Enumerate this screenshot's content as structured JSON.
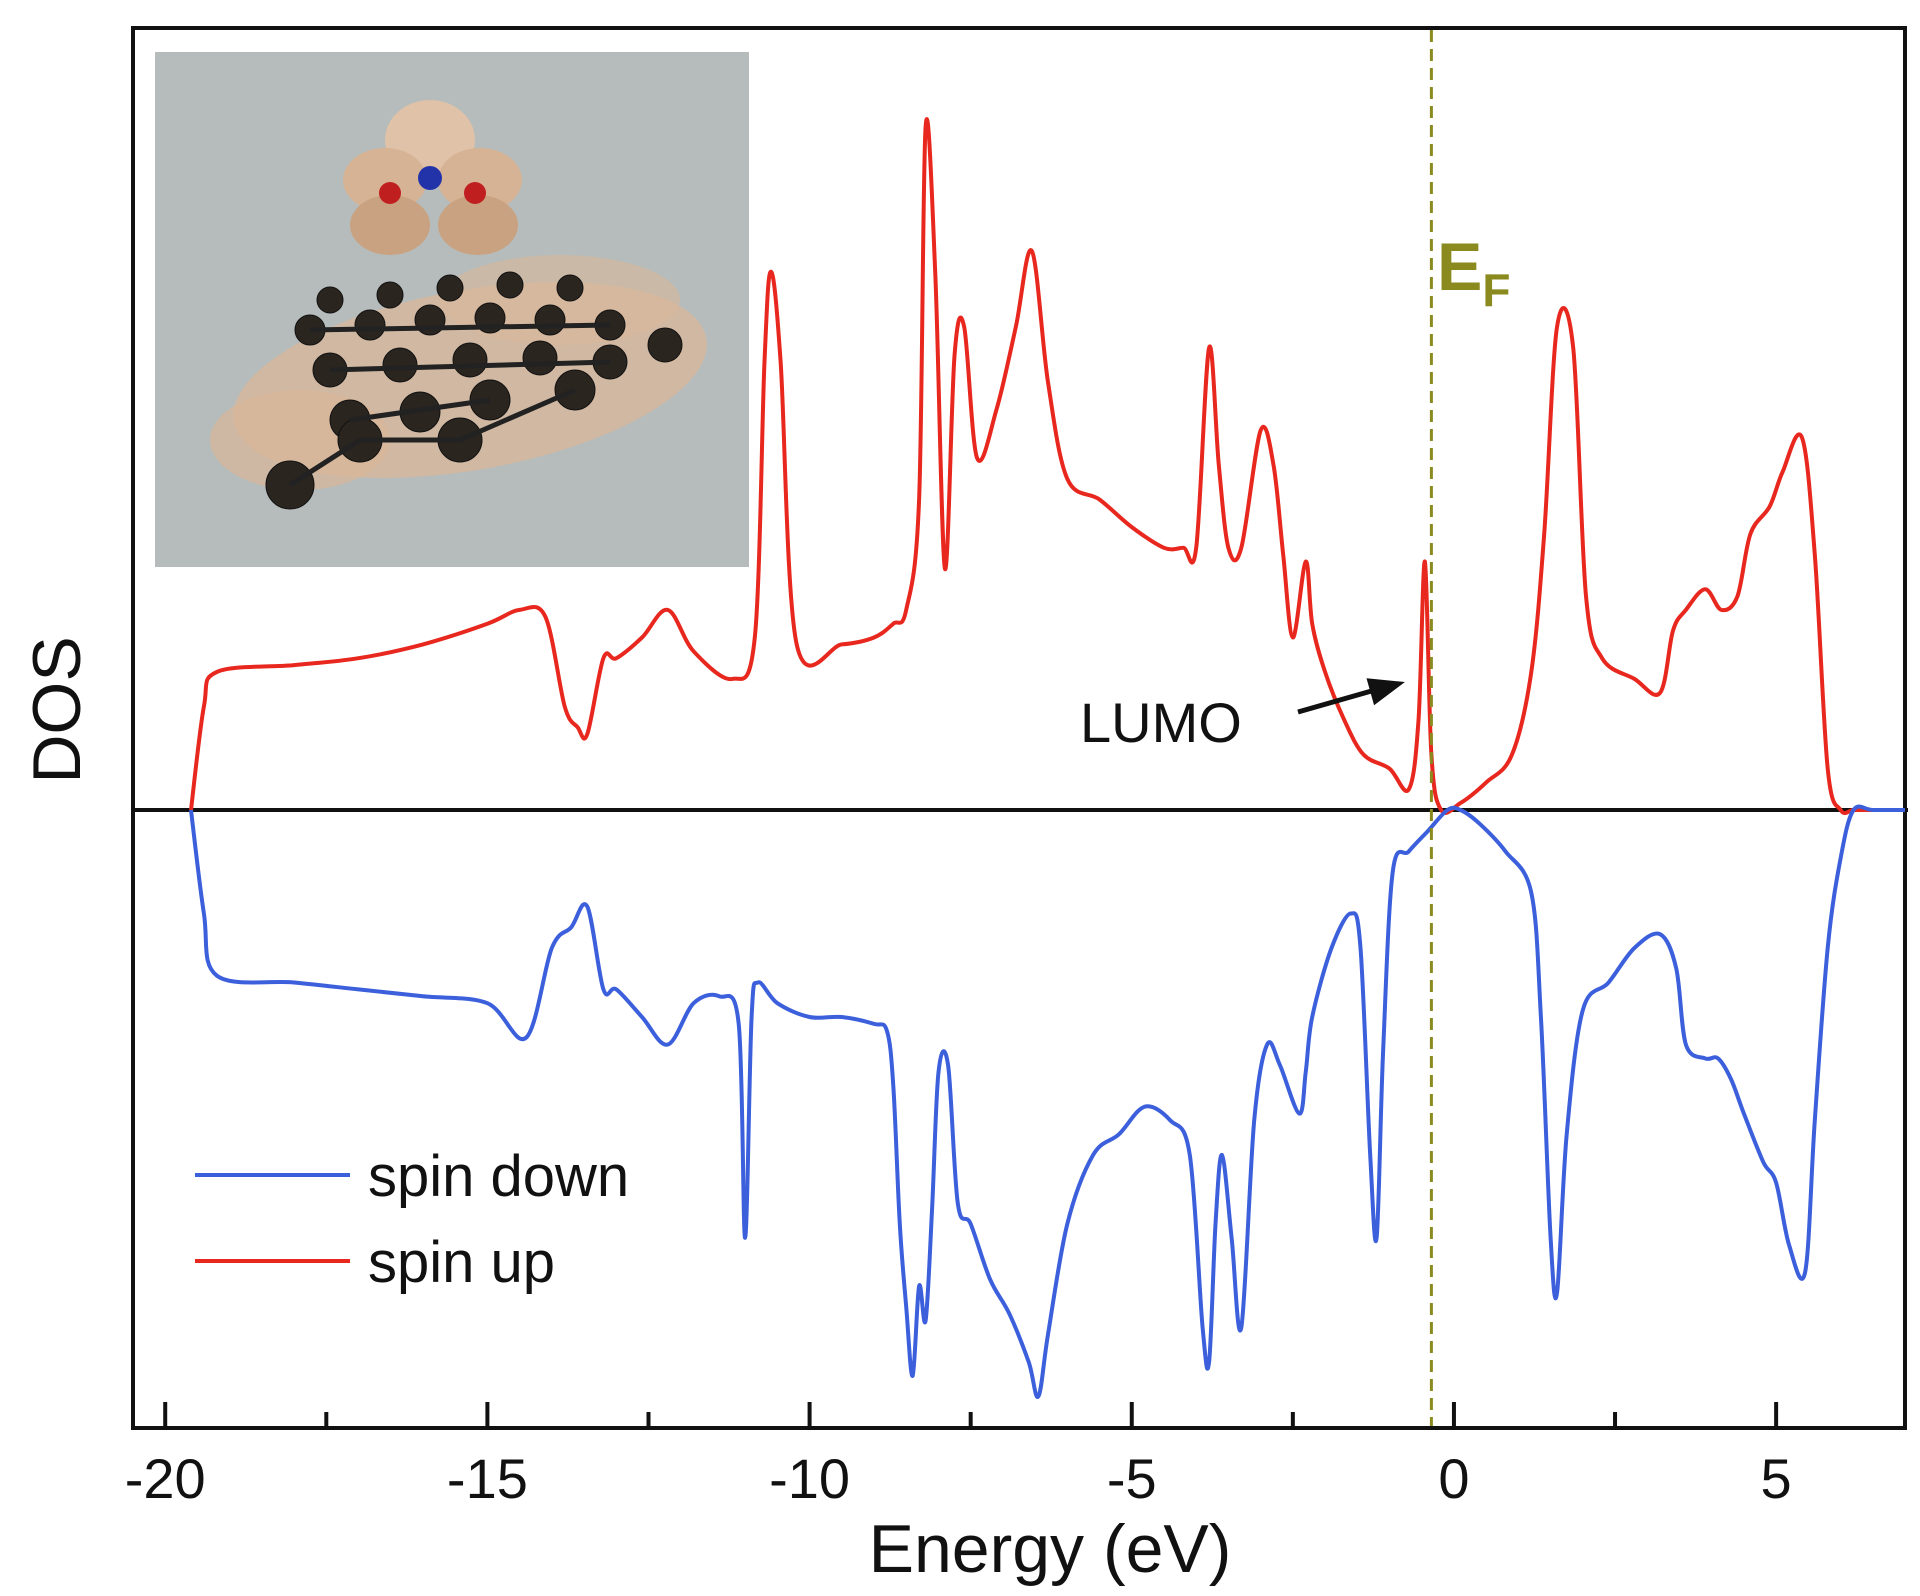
{
  "chart_data": {
    "type": "line",
    "title": "",
    "xlabel": "Energy (eV)",
    "ylabel": "DOS",
    "xlim": [
      -20.5,
      7
    ],
    "ylim": [
      -1,
      1
    ],
    "xticks": [
      -20,
      -15,
      -10,
      -5,
      0,
      5
    ],
    "xtick_labels": [
      "-20",
      "-15",
      "-10",
      "-5",
      "0",
      "5"
    ],
    "fermi_level": -0.35,
    "fermi_label_main": "E",
    "fermi_label_sub": "F",
    "annotation": {
      "text": "LUMO",
      "points_to_x": -0.45
    },
    "legend": {
      "placement": "bottom-left",
      "entries": [
        "spin down",
        "spin up"
      ]
    },
    "colors": {
      "spin_up": "#e8281e",
      "spin_down": "#3c5fdc",
      "fermi": "#8a8a1e",
      "axis": "#111111"
    },
    "series": [
      {
        "name": "spin up",
        "x": [
          -19.6,
          -19.4,
          -19.2,
          -18,
          -17,
          -16,
          -15,
          -14.5,
          -14.1,
          -13.8,
          -13.6,
          -13.45,
          -13.2,
          -13.0,
          -12.6,
          -12.2,
          -11.8,
          -11.2,
          -10.85,
          -10.7,
          -10.6,
          -10.45,
          -10.2,
          -9.5,
          -9.0,
          -8.7,
          -8.5,
          -8.3,
          -8.2,
          -8.05,
          -7.9,
          -7.75,
          -7.6,
          -7.4,
          -7.1,
          -6.8,
          -6.55,
          -6.3,
          -6.0,
          -5.5,
          -5.0,
          -4.5,
          -4.2,
          -4.0,
          -3.8,
          -3.65,
          -3.5,
          -3.3,
          -3.0,
          -2.8,
          -2.65,
          -2.5,
          -2.3,
          -2.2,
          -2.0,
          -1.7,
          -1.4,
          -1.0,
          -0.7,
          -0.55,
          -0.45,
          -0.35,
          -0.2,
          0.1,
          0.5,
          0.9,
          1.2,
          1.4,
          1.6,
          1.85,
          2.05,
          2.3,
          2.8,
          3.2,
          3.4,
          3.6,
          3.9,
          4.15,
          4.4,
          4.6,
          4.9,
          5.1,
          5.4,
          5.6,
          5.8,
          6.0,
          6.2,
          6.5,
          7.0
        ],
        "values": [
          0,
          0.15,
          0.2,
          0.21,
          0.22,
          0.24,
          0.27,
          0.29,
          0.28,
          0.15,
          0.12,
          0.11,
          0.22,
          0.22,
          0.25,
          0.29,
          0.23,
          0.19,
          0.25,
          0.65,
          0.78,
          0.65,
          0.24,
          0.24,
          0.25,
          0.27,
          0.29,
          0.45,
          0.99,
          0.78,
          0.35,
          0.66,
          0.7,
          0.51,
          0.58,
          0.7,
          0.81,
          0.62,
          0.48,
          0.45,
          0.41,
          0.38,
          0.38,
          0.38,
          0.67,
          0.5,
          0.38,
          0.38,
          0.55,
          0.5,
          0.37,
          0.25,
          0.36,
          0.27,
          0.2,
          0.13,
          0.08,
          0.06,
          0.03,
          0.13,
          0.36,
          0.08,
          0.0,
          0.01,
          0.04,
          0.08,
          0.2,
          0.4,
          0.7,
          0.67,
          0.31,
          0.22,
          0.19,
          0.17,
          0.26,
          0.29,
          0.32,
          0.29,
          0.31,
          0.4,
          0.44,
          0.49,
          0.54,
          0.37,
          0.06,
          0.0,
          0.0,
          0.0,
          0.0
        ]
      },
      {
        "name": "spin down",
        "x": [
          -19.6,
          -19.4,
          -19.2,
          -18,
          -17,
          -16,
          -15,
          -14.4,
          -14.0,
          -13.7,
          -13.45,
          -13.2,
          -13.0,
          -12.6,
          -12.2,
          -11.8,
          -11.4,
          -11.1,
          -11.0,
          -10.9,
          -10.8,
          -10.5,
          -10.0,
          -9.5,
          -9.0,
          -8.8,
          -8.7,
          -8.6,
          -8.5,
          -8.4,
          -8.3,
          -8.2,
          -8.1,
          -8.0,
          -7.85,
          -7.7,
          -7.5,
          -7.2,
          -6.9,
          -6.6,
          -6.45,
          -6.3,
          -6.0,
          -5.6,
          -5.2,
          -4.8,
          -4.4,
          -4.1,
          -3.9,
          -3.8,
          -3.7,
          -3.6,
          -3.45,
          -3.3,
          -3.1,
          -2.9,
          -2.7,
          -2.4,
          -2.3,
          -2.2,
          -1.9,
          -1.6,
          -1.45,
          -1.3,
          -1.2,
          -1.1,
          -0.95,
          -0.7,
          -0.4,
          -0.1,
          0.1,
          0.4,
          0.8,
          1.2,
          1.35,
          1.5,
          1.6,
          1.75,
          2.0,
          2.4,
          2.8,
          3.2,
          3.45,
          3.6,
          3.9,
          4.1,
          4.3,
          4.5,
          4.8,
          5.0,
          5.2,
          5.45,
          5.6,
          5.8,
          6.0,
          6.2,
          6.5,
          7.0
        ],
        "values": [
          0,
          -0.15,
          -0.24,
          -0.25,
          -0.26,
          -0.27,
          -0.28,
          -0.33,
          -0.2,
          -0.17,
          -0.14,
          -0.26,
          -0.26,
          -0.3,
          -0.34,
          -0.28,
          -0.27,
          -0.31,
          -0.62,
          -0.3,
          -0.25,
          -0.28,
          -0.3,
          -0.3,
          -0.31,
          -0.32,
          -0.4,
          -0.6,
          -0.72,
          -0.82,
          -0.69,
          -0.74,
          -0.58,
          -0.38,
          -0.37,
          -0.57,
          -0.6,
          -0.68,
          -0.73,
          -0.8,
          -0.85,
          -0.76,
          -0.6,
          -0.5,
          -0.47,
          -0.43,
          -0.45,
          -0.5,
          -0.75,
          -0.8,
          -0.6,
          -0.5,
          -0.62,
          -0.75,
          -0.45,
          -0.34,
          -0.37,
          -0.44,
          -0.38,
          -0.3,
          -0.2,
          -0.15,
          -0.2,
          -0.5,
          -0.62,
          -0.35,
          -0.09,
          -0.06,
          -0.03,
          0.0,
          0.0,
          -0.02,
          -0.06,
          -0.12,
          -0.3,
          -0.62,
          -0.7,
          -0.47,
          -0.29,
          -0.25,
          -0.2,
          -0.18,
          -0.23,
          -0.34,
          -0.36,
          -0.36,
          -0.39,
          -0.44,
          -0.51,
          -0.54,
          -0.63,
          -0.67,
          -0.45,
          -0.2,
          -0.07,
          0.0,
          0.0,
          0.0
        ]
      }
    ]
  }
}
